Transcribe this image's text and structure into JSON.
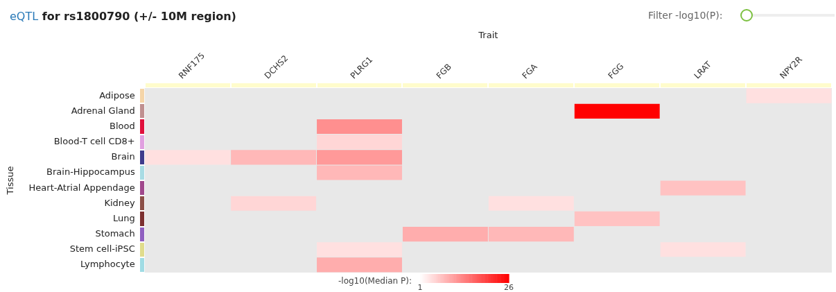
{
  "chart_data": {
    "type": "heatmap",
    "title": "eQTL for rs1800790 (+/- 10M region)",
    "xlabel": "Trait",
    "ylabel": "Tissue",
    "clabel": "-log10(Median P):",
    "annotations": [
      "Filter -log10(P):"
    ],
    "categories": [
      "RNF175",
      "DCHS2",
      "PLRG1",
      "FGB",
      "FGA",
      "FGG",
      "LRAT",
      "NPY2R"
    ],
    "y_categories": [
      "Adipose",
      "Adrenal Gland",
      "Blood",
      "Blood-T cell CD8+",
      "Brain",
      "Brain-Hippocampus",
      "Heart-Atrial Appendage",
      "Kidney",
      "Lung",
      "Stomach",
      "Stem cell-iPSC",
      "Lymphocyte"
    ],
    "cells": [
      [
        null,
        null,
        null,
        null,
        null,
        null,
        null,
        4
      ],
      [
        null,
        null,
        null,
        null,
        null,
        26,
        null,
        null
      ],
      [
        null,
        null,
        12,
        null,
        null,
        null,
        null,
        null
      ],
      [
        null,
        null,
        5,
        null,
        null,
        null,
        null,
        null
      ],
      [
        4,
        8,
        11,
        null,
        null,
        null,
        null,
        null
      ],
      [
        null,
        null,
        8,
        null,
        null,
        null,
        null,
        null
      ],
      [
        null,
        null,
        null,
        null,
        null,
        null,
        7,
        null
      ],
      [
        null,
        5,
        null,
        null,
        4,
        null,
        null,
        null
      ],
      [
        null,
        null,
        null,
        null,
        null,
        7,
        null,
        null
      ],
      [
        null,
        null,
        null,
        9,
        8,
        null,
        null,
        null
      ],
      [
        null,
        null,
        4,
        null,
        null,
        null,
        4,
        null
      ],
      [
        null,
        null,
        9,
        null,
        null,
        null,
        null,
        null
      ]
    ],
    "clim": [
      1,
      26
    ],
    "cticks": [
      1,
      26
    ]
  }
}
